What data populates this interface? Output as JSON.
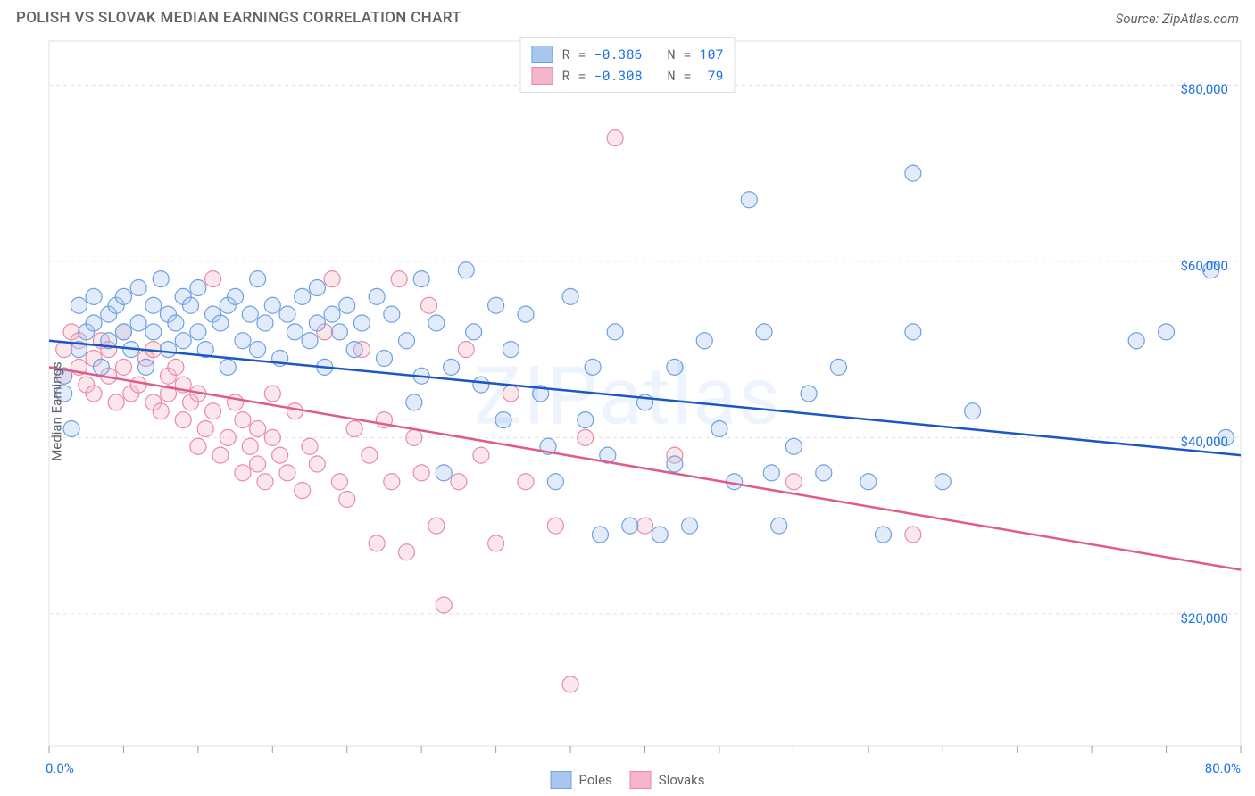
{
  "title": "POLISH VS SLOVAK MEDIAN EARNINGS CORRELATION CHART",
  "source": "Source: ZipAtlas.com",
  "watermark": "ZIPatlas",
  "ylabel": "Median Earnings",
  "chart": {
    "type": "scatter-with-regression",
    "xlim": [
      0,
      80
    ],
    "ylim": [
      5000,
      85000
    ],
    "y_gridlines": [
      20000,
      40000,
      60000,
      80000
    ],
    "y_labels": [
      "$20,000",
      "$40,000",
      "$60,000",
      "$80,000"
    ],
    "x_ticks": [
      0,
      5,
      10,
      15,
      20,
      25,
      30,
      35,
      40,
      45,
      50,
      55,
      60,
      65,
      70,
      75,
      80
    ],
    "x_min_label": "0.0%",
    "x_max_label": "80.0%",
    "background_color": "#ffffff",
    "grid_color": "#e0e0e0",
    "border_color": "#e0e0e0",
    "axis_color": "#9aa0a6",
    "tick_label_color": "#1a73e8",
    "label_color": "#5f6368",
    "marker_radius": 9,
    "marker_fill_opacity": 0.35,
    "series": [
      {
        "name": "Poles",
        "stroke": "#1a73e8",
        "fill": "#a8c7f0",
        "border": "#6ea0e0",
        "line_color": "#1a56c4",
        "line_width": 2.5,
        "R": "-0.386",
        "N": "107",
        "regression": {
          "x1": 0,
          "y1": 51000,
          "x2": 80,
          "y2": 38000
        },
        "points": [
          [
            1,
            45000
          ],
          [
            1,
            47000
          ],
          [
            1.5,
            41000
          ],
          [
            2,
            55000
          ],
          [
            2,
            50000
          ],
          [
            2.5,
            52000
          ],
          [
            3,
            53000
          ],
          [
            3,
            56000
          ],
          [
            3.5,
            48000
          ],
          [
            4,
            54000
          ],
          [
            4,
            51000
          ],
          [
            4.5,
            55000
          ],
          [
            5,
            52000
          ],
          [
            5,
            56000
          ],
          [
            5.5,
            50000
          ],
          [
            6,
            53000
          ],
          [
            6,
            57000
          ],
          [
            6.5,
            48000
          ],
          [
            7,
            55000
          ],
          [
            7,
            52000
          ],
          [
            7.5,
            58000
          ],
          [
            8,
            50000
          ],
          [
            8,
            54000
          ],
          [
            8.5,
            53000
          ],
          [
            9,
            56000
          ],
          [
            9,
            51000
          ],
          [
            9.5,
            55000
          ],
          [
            10,
            52000
          ],
          [
            10,
            57000
          ],
          [
            10.5,
            50000
          ],
          [
            11,
            54000
          ],
          [
            11.5,
            53000
          ],
          [
            12,
            55000
          ],
          [
            12,
            48000
          ],
          [
            12.5,
            56000
          ],
          [
            13,
            51000
          ],
          [
            13.5,
            54000
          ],
          [
            14,
            58000
          ],
          [
            14,
            50000
          ],
          [
            14.5,
            53000
          ],
          [
            15,
            55000
          ],
          [
            15.5,
            49000
          ],
          [
            16,
            54000
          ],
          [
            16.5,
            52000
          ],
          [
            17,
            56000
          ],
          [
            17.5,
            51000
          ],
          [
            18,
            53000
          ],
          [
            18,
            57000
          ],
          [
            18.5,
            48000
          ],
          [
            19,
            54000
          ],
          [
            19.5,
            52000
          ],
          [
            20,
            55000
          ],
          [
            20.5,
            50000
          ],
          [
            21,
            53000
          ],
          [
            22,
            56000
          ],
          [
            22.5,
            49000
          ],
          [
            23,
            54000
          ],
          [
            24,
            51000
          ],
          [
            24.5,
            44000
          ],
          [
            25,
            58000
          ],
          [
            25,
            47000
          ],
          [
            26,
            53000
          ],
          [
            26.5,
            36000
          ],
          [
            27,
            48000
          ],
          [
            28,
            59000
          ],
          [
            28.5,
            52000
          ],
          [
            29,
            46000
          ],
          [
            30,
            55000
          ],
          [
            30.5,
            42000
          ],
          [
            31,
            50000
          ],
          [
            32,
            54000
          ],
          [
            33,
            45000
          ],
          [
            33.5,
            39000
          ],
          [
            34,
            35000
          ],
          [
            35,
            56000
          ],
          [
            36,
            42000
          ],
          [
            36.5,
            48000
          ],
          [
            37,
            29000
          ],
          [
            37.5,
            38000
          ],
          [
            38,
            52000
          ],
          [
            39,
            30000
          ],
          [
            40,
            44000
          ],
          [
            41,
            29000
          ],
          [
            42,
            48000
          ],
          [
            42,
            37000
          ],
          [
            43,
            30000
          ],
          [
            44,
            51000
          ],
          [
            45,
            41000
          ],
          [
            46,
            35000
          ],
          [
            47,
            67000
          ],
          [
            48,
            52000
          ],
          [
            48.5,
            36000
          ],
          [
            49,
            30000
          ],
          [
            50,
            39000
          ],
          [
            51,
            45000
          ],
          [
            52,
            36000
          ],
          [
            53,
            48000
          ],
          [
            55,
            35000
          ],
          [
            56,
            29000
          ],
          [
            58,
            70000
          ],
          [
            58,
            52000
          ],
          [
            60,
            35000
          ],
          [
            62,
            43000
          ],
          [
            73,
            51000
          ],
          [
            75,
            52000
          ],
          [
            78,
            59000
          ],
          [
            79,
            40000
          ]
        ]
      },
      {
        "name": "Slovaks",
        "stroke": "#e91e63",
        "fill": "#f4b6c8",
        "border": "#e88aa8",
        "line_color": "#e05a8a",
        "line_width": 2.5,
        "R": "-0.308",
        "N": "79",
        "regression": {
          "x1": 0,
          "y1": 48000,
          "x2": 80,
          "y2": 25000
        },
        "points": [
          [
            1,
            50000
          ],
          [
            1,
            47000
          ],
          [
            1.5,
            52000
          ],
          [
            2,
            48000
          ],
          [
            2,
            51000
          ],
          [
            2.5,
            46000
          ],
          [
            3,
            49000
          ],
          [
            3,
            45000
          ],
          [
            3.5,
            51000
          ],
          [
            4,
            47000
          ],
          [
            4,
            50000
          ],
          [
            4.5,
            44000
          ],
          [
            5,
            48000
          ],
          [
            5,
            52000
          ],
          [
            5.5,
            45000
          ],
          [
            6,
            46000
          ],
          [
            6.5,
            49000
          ],
          [
            7,
            44000
          ],
          [
            7,
            50000
          ],
          [
            7.5,
            43000
          ],
          [
            8,
            47000
          ],
          [
            8,
            45000
          ],
          [
            8.5,
            48000
          ],
          [
            9,
            42000
          ],
          [
            9,
            46000
          ],
          [
            9.5,
            44000
          ],
          [
            10,
            39000
          ],
          [
            10,
            45000
          ],
          [
            10.5,
            41000
          ],
          [
            11,
            43000
          ],
          [
            11,
            58000
          ],
          [
            11.5,
            38000
          ],
          [
            12,
            40000
          ],
          [
            12.5,
            44000
          ],
          [
            13,
            36000
          ],
          [
            13,
            42000
          ],
          [
            13.5,
            39000
          ],
          [
            14,
            37000
          ],
          [
            14,
            41000
          ],
          [
            14.5,
            35000
          ],
          [
            15,
            40000
          ],
          [
            15,
            45000
          ],
          [
            15.5,
            38000
          ],
          [
            16,
            36000
          ],
          [
            16.5,
            43000
          ],
          [
            17,
            34000
          ],
          [
            17.5,
            39000
          ],
          [
            18,
            37000
          ],
          [
            18.5,
            52000
          ],
          [
            19,
            58000
          ],
          [
            19.5,
            35000
          ],
          [
            20,
            33000
          ],
          [
            20.5,
            41000
          ],
          [
            21,
            50000
          ],
          [
            21.5,
            38000
          ],
          [
            22,
            28000
          ],
          [
            22.5,
            42000
          ],
          [
            23,
            35000
          ],
          [
            23.5,
            58000
          ],
          [
            24,
            27000
          ],
          [
            24.5,
            40000
          ],
          [
            25,
            36000
          ],
          [
            25.5,
            55000
          ],
          [
            26,
            30000
          ],
          [
            26.5,
            21000
          ],
          [
            27.5,
            35000
          ],
          [
            28,
            50000
          ],
          [
            29,
            38000
          ],
          [
            30,
            28000
          ],
          [
            31,
            45000
          ],
          [
            32,
            35000
          ],
          [
            34,
            30000
          ],
          [
            35,
            12000
          ],
          [
            36,
            40000
          ],
          [
            38,
            74000
          ],
          [
            40,
            30000
          ],
          [
            42,
            38000
          ],
          [
            50,
            35000
          ],
          [
            58,
            29000
          ]
        ]
      }
    ]
  },
  "bottom_legend": [
    {
      "label": "Poles",
      "fill": "#a8c7f0",
      "border": "#6ea0e0"
    },
    {
      "label": "Slovaks",
      "fill": "#f4b6c8",
      "border": "#e88aa8"
    }
  ]
}
